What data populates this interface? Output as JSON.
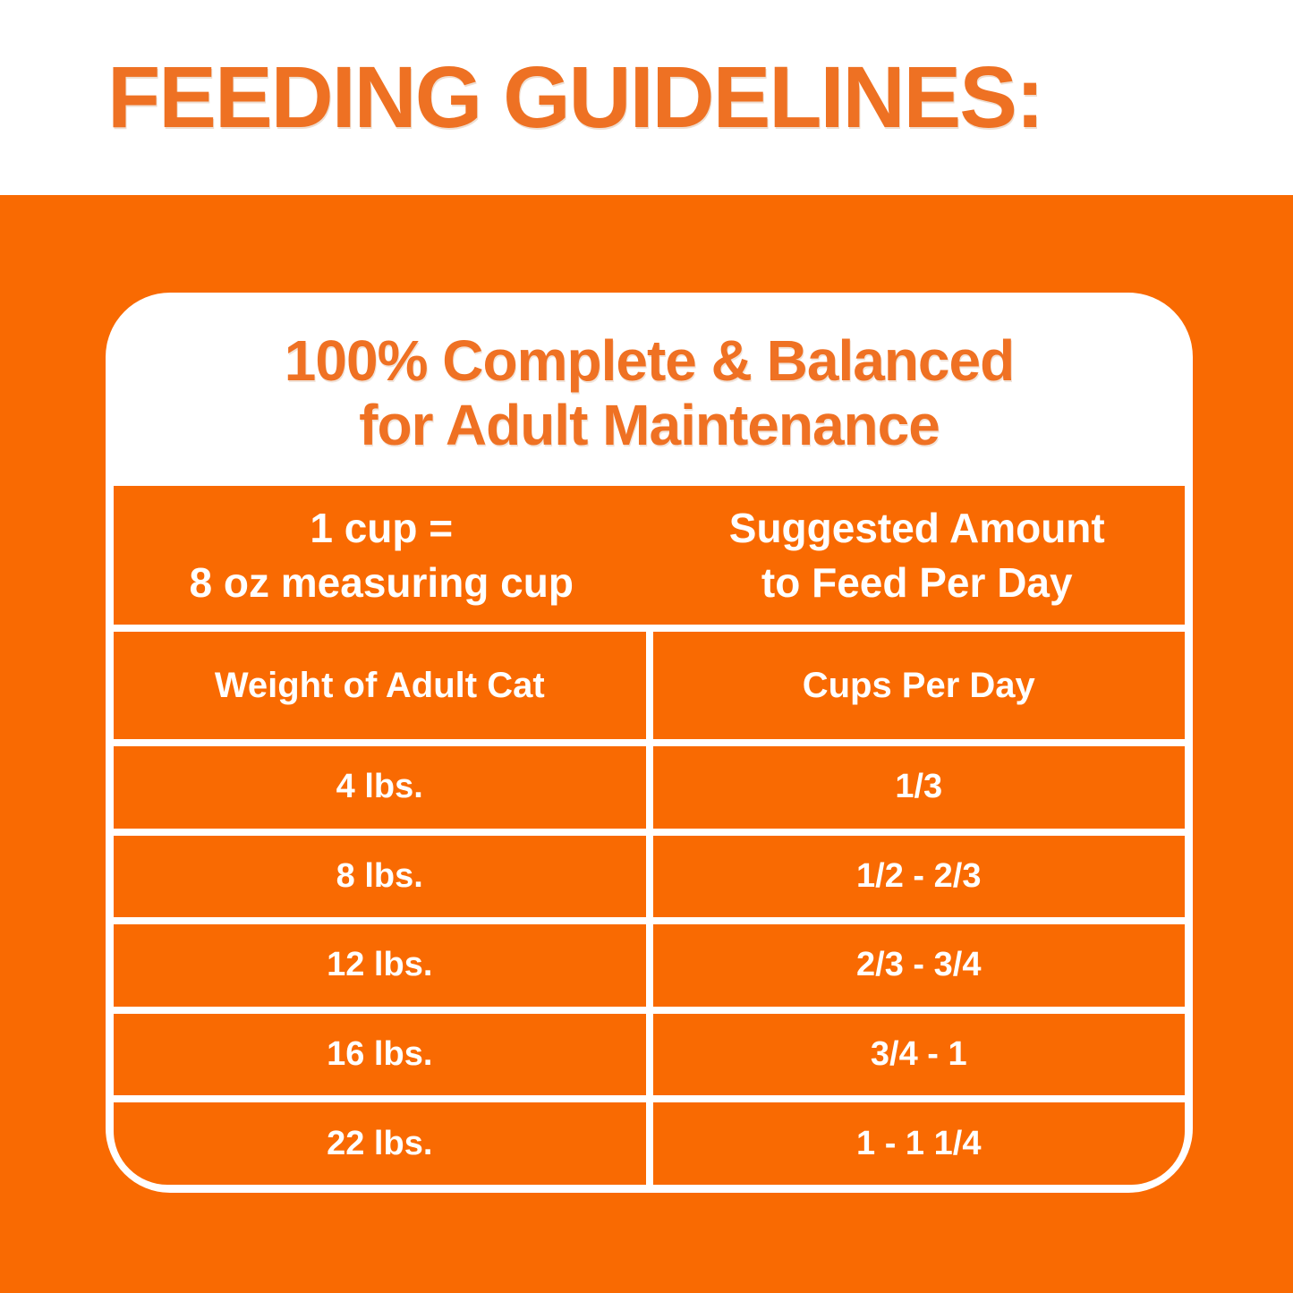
{
  "title": "FEEDING GUIDELINES:",
  "card": {
    "heading_line1": "100% Complete & Balanced",
    "heading_line2": "for Adult Maintenance",
    "table": {
      "header_left_line1": "1 cup =",
      "header_left_line2": "8 oz measuring cup",
      "header_right_line1": "Suggested Amount",
      "header_right_line2": "to Feed Per Day",
      "col1_header": "Weight of Adult Cat",
      "col2_header": "Cups Per Day",
      "rows": [
        {
          "weight": "4 lbs.",
          "cups": "1/3"
        },
        {
          "weight": "8 lbs.",
          "cups": "1/2 - 2/3"
        },
        {
          "weight": "12 lbs.",
          "cups": "2/3 - 3/4"
        },
        {
          "weight": "16 lbs.",
          "cups": "3/4 - 1"
        },
        {
          "weight": "22 lbs.",
          "cups": "1 - 1 1/4"
        }
      ]
    }
  },
  "colors": {
    "background_orange": "#F96A02",
    "accent_text_orange": "#EF7123",
    "table_text_white": "#FFFFFF",
    "card_background": "#FFFFFF"
  }
}
